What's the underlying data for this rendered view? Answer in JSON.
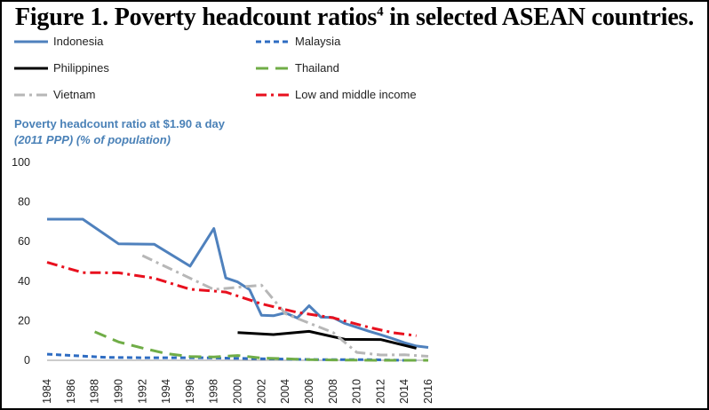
{
  "title": {
    "main": "Figure 1. Poverty headcount ratios",
    "superscript": "4",
    "rest": " in selected ASEAN countries."
  },
  "subtitle": {
    "line1": "Poverty headcount ratio at $1.90 a day",
    "line2": "(2011 PPP) (% of population)"
  },
  "chart_data": {
    "type": "line",
    "title": "Poverty headcount ratio at $1.90 a day (2011 PPP) (% of population)",
    "xlabel": "",
    "ylabel": "",
    "ylim": [
      0,
      100
    ],
    "yticks": [
      "0",
      "20",
      "40",
      "60",
      "80",
      "100"
    ],
    "xlim": [
      1984,
      2016
    ],
    "xticks": [
      "1984",
      "1986",
      "1988",
      "1990",
      "1992",
      "1994",
      "1996",
      "1998",
      "2000",
      "2002",
      "2004",
      "2006",
      "2008",
      "2010",
      "2012",
      "2014",
      "2016"
    ],
    "grid": false,
    "legend_position": "top",
    "series": [
      {
        "name": "Indonesia",
        "color": "#4f81bd",
        "style": "solid",
        "x": [
          1984,
          1987,
          1990,
          1993,
          1996,
          1998,
          1999,
          2000,
          2001,
          2002,
          2003,
          2004,
          2005,
          2006,
          2007,
          2008,
          2009,
          2010,
          2011,
          2012,
          2013,
          2014,
          2015,
          2016
        ],
        "y": [
          71.3,
          71.3,
          58.9,
          58.6,
          47.6,
          66.6,
          41.6,
          39.6,
          35.7,
          22.8,
          22.5,
          24.0,
          21.4,
          27.6,
          21.8,
          21.6,
          18.6,
          16.7,
          14.7,
          12.9,
          11.0,
          8.9,
          7.2,
          6.5
        ]
      },
      {
        "name": "Malaysia",
        "color": "#2e6cc2",
        "style": "dash",
        "x": [
          1984,
          1989,
          1992,
          1995,
          1997,
          2004,
          2007,
          2009,
          2011,
          2014,
          2015
        ],
        "y": [
          3.1,
          1.5,
          1.3,
          1.3,
          1.3,
          0.6,
          0.3,
          0.3,
          0.3,
          0.0,
          0.0
        ]
      },
      {
        "name": "Philippines",
        "color": "#000000",
        "style": "solid",
        "x": [
          2000,
          2003,
          2006,
          2009,
          2012,
          2015
        ],
        "y": [
          14.0,
          13.0,
          14.6,
          10.6,
          10.5,
          6.1
        ]
      },
      {
        "name": "Thailand",
        "color": "#70ad47",
        "style": "longdash",
        "x": [
          1988,
          1990,
          1992,
          1994,
          1996,
          1998,
          2000,
          2002,
          2004,
          2006,
          2008,
          2010,
          2012,
          2014,
          2016
        ],
        "y": [
          14.4,
          9.3,
          6.2,
          3.4,
          1.9,
          1.7,
          2.4,
          1.1,
          0.8,
          0.3,
          0.2,
          0.1,
          0.0,
          0.0,
          0.0
        ]
      },
      {
        "name": "Vietnam",
        "color": "#b7b7b7",
        "style": "dashdot",
        "x": [
          1992,
          1998,
          2002,
          2004,
          2006,
          2008,
          2010,
          2012,
          2014,
          2016
        ],
        "y": [
          52.9,
          35.8,
          38.0,
          23.6,
          18.8,
          14.1,
          4.0,
          2.7,
          2.8,
          2.0
        ]
      },
      {
        "name": "Low and middle income",
        "color": "#e8101e",
        "style": "dashdot",
        "x": [
          1984,
          1987,
          1990,
          1993,
          1996,
          1999,
          2002,
          2005,
          2008,
          2011,
          2013,
          2015
        ],
        "y": [
          49.5,
          44.3,
          44.2,
          41.5,
          35.9,
          34.5,
          28.5,
          24.2,
          21.5,
          16.7,
          14.0,
          12.4
        ]
      }
    ]
  }
}
